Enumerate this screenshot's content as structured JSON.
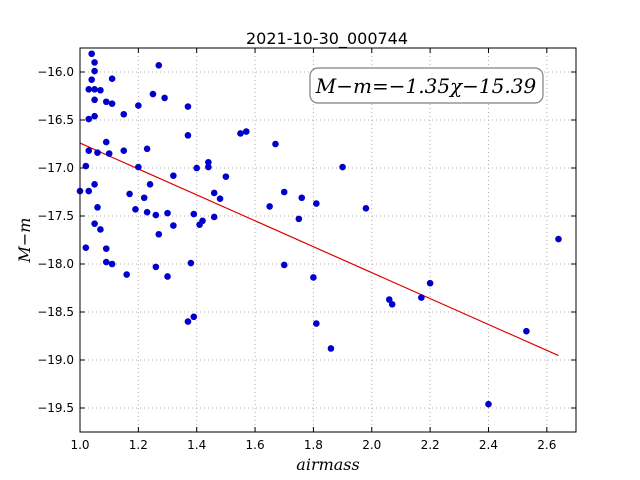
{
  "chart_data": {
    "type": "scatter",
    "title": "2021-10-30_000744",
    "xlabel": "airmass",
    "ylabel": "M−m",
    "xlim": [
      1.0,
      2.7
    ],
    "ylim": [
      -19.75,
      -15.75
    ],
    "y_inverted": true,
    "grid": true,
    "xticks": [
      "1.0",
      "1.2",
      "1.4",
      "1.6",
      "1.8",
      "2.0",
      "2.2",
      "2.4",
      "2.6"
    ],
    "yticks": [
      "−16.0",
      "−16.5",
      "−17.0",
      "−17.5",
      "−18.0",
      "−18.5",
      "−19.0",
      "−19.5"
    ],
    "annotation": "M−m=−1.35χ−15.39",
    "fit": {
      "slope": -1.35,
      "intercept": -15.39,
      "x_range": [
        1.0,
        2.64
      ],
      "color": "#e00000"
    },
    "point_color": "#0000cc",
    "points": [
      [
        1.04,
        -15.81
      ],
      [
        1.05,
        -15.9
      ],
      [
        1.05,
        -15.99
      ],
      [
        1.04,
        -16.08
      ],
      [
        1.03,
        -16.18
      ],
      [
        1.05,
        -16.18
      ],
      [
        1.07,
        -16.19
      ],
      [
        1.05,
        -16.29
      ],
      [
        1.09,
        -16.31
      ],
      [
        1.11,
        -16.33
      ],
      [
        1.11,
        -16.07
      ],
      [
        1.05,
        -16.46
      ],
      [
        1.03,
        -16.49
      ],
      [
        1.15,
        -16.44
      ],
      [
        1.2,
        -16.35
      ],
      [
        1.25,
        -16.23
      ],
      [
        1.27,
        -15.93
      ],
      [
        1.29,
        -16.27
      ],
      [
        1.37,
        -16.36
      ],
      [
        1.37,
        -16.66
      ],
      [
        1.09,
        -16.73
      ],
      [
        1.03,
        -16.82
      ],
      [
        1.06,
        -16.84
      ],
      [
        1.1,
        -16.85
      ],
      [
        1.15,
        -16.82
      ],
      [
        1.23,
        -16.8
      ],
      [
        1.02,
        -16.98
      ],
      [
        1.2,
        -16.99
      ],
      [
        1.32,
        -17.08
      ],
      [
        1.05,
        -17.17
      ],
      [
        1.24,
        -17.17
      ],
      [
        1.0,
        -17.24
      ],
      [
        1.03,
        -17.24
      ],
      [
        1.17,
        -17.27
      ],
      [
        1.22,
        -17.31
      ],
      [
        1.06,
        -17.41
      ],
      [
        1.19,
        -17.43
      ],
      [
        1.23,
        -17.46
      ],
      [
        1.26,
        -17.49
      ],
      [
        1.3,
        -17.47
      ],
      [
        1.05,
        -17.58
      ],
      [
        1.07,
        -17.64
      ],
      [
        1.27,
        -17.69
      ],
      [
        1.32,
        -17.6
      ],
      [
        1.39,
        -17.48
      ],
      [
        1.41,
        -17.59
      ],
      [
        1.42,
        -17.55
      ],
      [
        1.46,
        -17.51
      ],
      [
        1.46,
        -17.26
      ],
      [
        1.48,
        -17.32
      ],
      [
        1.44,
        -16.94
      ],
      [
        1.44,
        -16.99
      ],
      [
        1.4,
        -17.0
      ],
      [
        1.5,
        -17.09
      ],
      [
        1.55,
        -16.64
      ],
      [
        1.57,
        -16.62
      ],
      [
        1.67,
        -16.75
      ],
      [
        1.7,
        -17.25
      ],
      [
        1.65,
        -17.4
      ],
      [
        1.76,
        -17.31
      ],
      [
        1.75,
        -17.53
      ],
      [
        1.81,
        -17.37
      ],
      [
        1.9,
        -16.99
      ],
      [
        1.98,
        -17.42
      ],
      [
        1.02,
        -17.83
      ],
      [
        1.09,
        -17.84
      ],
      [
        1.09,
        -17.98
      ],
      [
        1.11,
        -18.0
      ],
      [
        1.16,
        -18.11
      ],
      [
        1.26,
        -18.03
      ],
      [
        1.3,
        -18.13
      ],
      [
        1.38,
        -17.99
      ],
      [
        1.7,
        -18.01
      ],
      [
        1.8,
        -18.14
      ],
      [
        1.37,
        -18.6
      ],
      [
        1.39,
        -18.55
      ],
      [
        1.81,
        -18.62
      ],
      [
        1.86,
        -18.88
      ],
      [
        2.06,
        -18.37
      ],
      [
        2.07,
        -18.42
      ],
      [
        2.17,
        -18.35
      ],
      [
        2.2,
        -18.2
      ],
      [
        2.53,
        -18.7
      ],
      [
        2.64,
        -17.74
      ],
      [
        2.4,
        -19.46
      ]
    ]
  }
}
